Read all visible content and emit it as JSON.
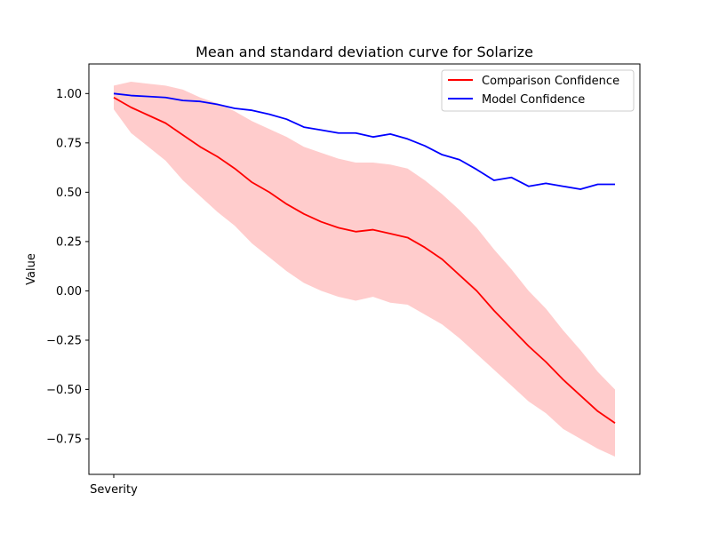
{
  "chart_data": {
    "type": "line",
    "title": "Mean and standard deviation curve for Solarize",
    "xlabel": "",
    "ylabel": "Value",
    "x_tick_labels": [
      "Severity"
    ],
    "ylim": [
      -0.93,
      1.15
    ],
    "y_ticks": [
      -0.75,
      -0.5,
      -0.25,
      0.0,
      0.25,
      0.5,
      0.75,
      1.0
    ],
    "y_tick_labels": [
      "−0.75",
      "−0.50",
      "−0.25",
      "0.00",
      "0.25",
      "0.50",
      "0.75",
      "1.00"
    ],
    "grid": false,
    "legend_position": "top-right",
    "x": [
      0,
      1,
      2,
      3,
      4,
      5,
      6,
      7,
      8,
      9,
      10,
      11,
      12,
      13,
      14,
      15,
      16,
      17,
      18,
      19,
      20,
      21,
      22,
      23,
      24,
      25,
      26,
      27,
      28,
      29
    ],
    "series": [
      {
        "name": "Comparison Confidence",
        "color": "#ff0000",
        "values": [
          0.98,
          0.93,
          0.89,
          0.85,
          0.79,
          0.73,
          0.68,
          0.62,
          0.55,
          0.5,
          0.44,
          0.39,
          0.35,
          0.32,
          0.3,
          0.31,
          0.29,
          0.27,
          0.22,
          0.16,
          0.08,
          0.0,
          -0.1,
          -0.19,
          -0.28,
          -0.36,
          -0.45,
          -0.53,
          -0.61,
          -0.67
        ],
        "band_upper": [
          1.04,
          1.06,
          1.05,
          1.04,
          1.02,
          0.98,
          0.95,
          0.91,
          0.86,
          0.82,
          0.78,
          0.73,
          0.7,
          0.67,
          0.65,
          0.65,
          0.64,
          0.62,
          0.56,
          0.49,
          0.41,
          0.32,
          0.21,
          0.11,
          0.0,
          -0.09,
          -0.2,
          -0.3,
          -0.41,
          -0.5
        ],
        "band_lower": [
          0.92,
          0.8,
          0.73,
          0.66,
          0.56,
          0.48,
          0.4,
          0.33,
          0.24,
          0.17,
          0.1,
          0.04,
          0.0,
          -0.03,
          -0.05,
          -0.03,
          -0.06,
          -0.07,
          -0.12,
          -0.17,
          -0.24,
          -0.32,
          -0.4,
          -0.48,
          -0.56,
          -0.62,
          -0.7,
          -0.75,
          -0.8,
          -0.84
        ],
        "band_color": "#ff0000",
        "band_opacity": 0.2
      },
      {
        "name": "Model Confidence",
        "color": "#0000ff",
        "values": [
          1.0,
          0.99,
          0.985,
          0.98,
          0.965,
          0.96,
          0.945,
          0.925,
          0.915,
          0.895,
          0.87,
          0.83,
          0.815,
          0.8,
          0.8,
          0.78,
          0.795,
          0.77,
          0.735,
          0.69,
          0.665,
          0.615,
          0.56,
          0.575,
          0.53,
          0.545,
          0.53,
          0.515,
          0.54,
          0.54
        ]
      }
    ]
  }
}
